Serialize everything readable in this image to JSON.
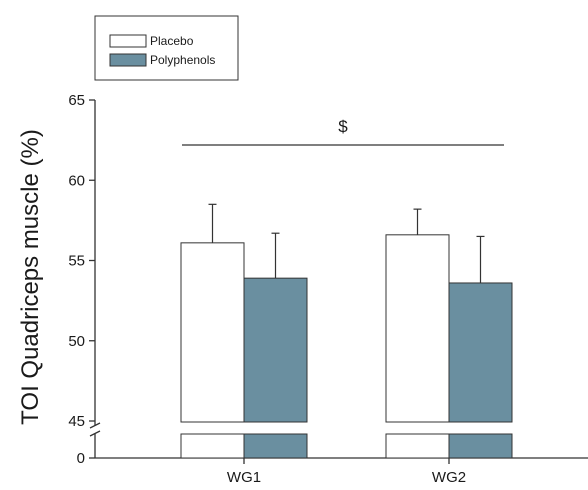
{
  "chart_data": {
    "type": "bar",
    "categories": [
      "WG1",
      "WG2"
    ],
    "series": [
      {
        "name": "Placebo",
        "color": "#ffffff",
        "values": [
          56.1,
          56.6
        ],
        "errors": [
          2.4,
          1.6
        ]
      },
      {
        "name": "Polyphenols",
        "color": "#6a8fa0",
        "values": [
          53.9,
          53.6
        ],
        "errors": [
          2.8,
          2.9
        ]
      }
    ],
    "ylabel": "TOI Quadriceps muscle (%)",
    "ylim": [
      45,
      65
    ],
    "yticks": [
      45,
      50,
      55,
      60,
      65
    ],
    "ybreak": {
      "lower_tick": 0
    },
    "annotation": {
      "text": "$"
    },
    "legend": "top-left",
    "grid": false
  }
}
